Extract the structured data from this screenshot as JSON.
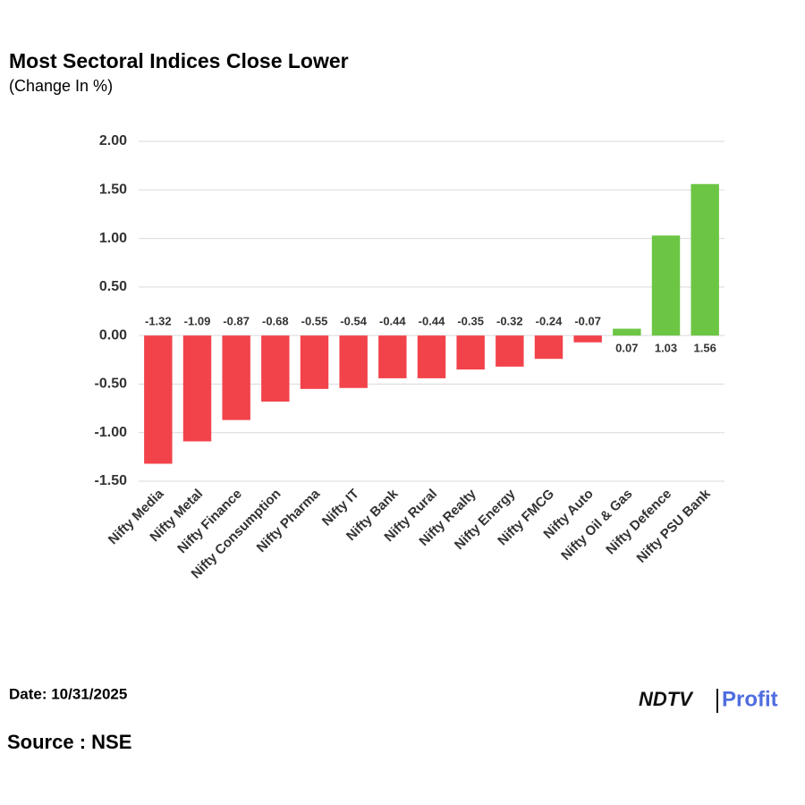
{
  "chart_data": {
    "type": "bar",
    "title": "Most Sectoral Indices Close Lower",
    "subtitle": "(Change In %)",
    "categories": [
      "Nifty Media",
      "Nifty Metal",
      "Nifty Finance",
      "Nifty Consumption",
      "Nifty Pharma",
      "Nifty IT",
      "Nifty Bank",
      "Nifty Rural",
      "Nifty Realty",
      "Nifty Energy",
      "Nifty FMCG",
      "Nifty Auto",
      "Nifty Oil & Gas",
      "Nifty Defence",
      "Nifty PSU Bank"
    ],
    "values": [
      -1.32,
      -1.09,
      -0.87,
      -0.68,
      -0.55,
      -0.54,
      -0.44,
      -0.44,
      -0.35,
      -0.32,
      -0.24,
      -0.07,
      0.07,
      1.03,
      1.56
    ],
    "negative_color": "#f2434b",
    "positive_color": "#6cc644",
    "ylim": [
      -1.5,
      2
    ],
    "yticks": [
      {
        "value": -1.5,
        "label": "-1.50"
      },
      {
        "value": -1,
        "label": "-1.00"
      },
      {
        "value": -0.5,
        "label": "-0.50"
      },
      {
        "value": 0,
        "label": "0.00"
      },
      {
        "value": 0.5,
        "label": "0.50"
      },
      {
        "value": 1,
        "label": "1.00"
      },
      {
        "value": 1.5,
        "label": "1.50"
      },
      {
        "value": 2,
        "label": "2.00"
      }
    ],
    "grid": true
  },
  "footer": {
    "date": "Date: 10/31/2025",
    "source": "Source : NSE",
    "brand": "NDTV",
    "brand_sub": "Profit"
  }
}
